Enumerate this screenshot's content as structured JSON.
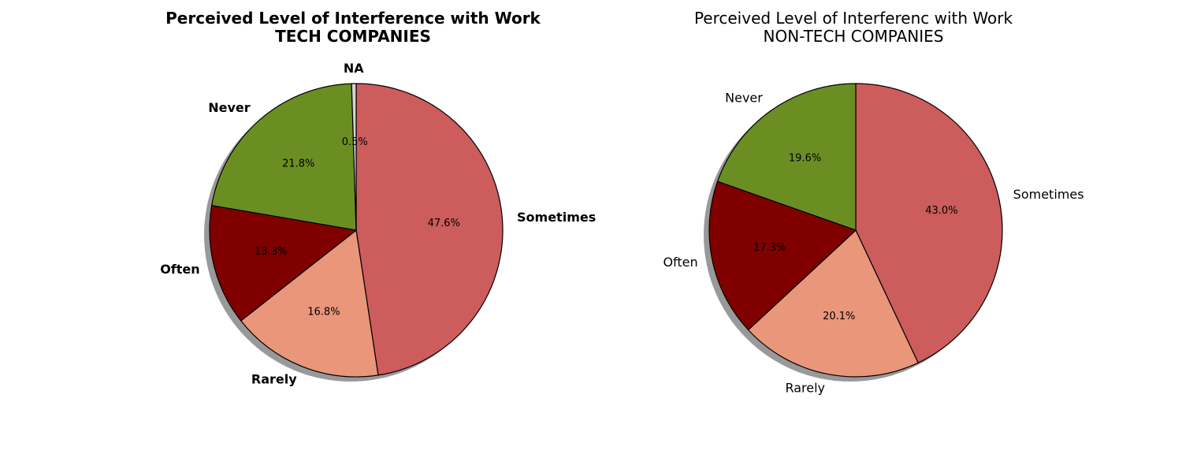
{
  "chart_data": [
    {
      "type": "pie",
      "title": "Perceived Level of Interference with Work",
      "subtitle": "TECH COMPANIES",
      "bold_labels": true,
      "slices": [
        {
          "label": "Sometimes",
          "value": 47.6,
          "pct_label": "47.6%",
          "color": "#cd5c5c"
        },
        {
          "label": "Rarely",
          "value": 16.8,
          "pct_label": "16.8%",
          "color": "#e9967a"
        },
        {
          "label": "Often",
          "value": 13.3,
          "pct_label": "13.3%",
          "color": "#800000"
        },
        {
          "label": "Never",
          "value": 21.8,
          "pct_label": "21.8%",
          "color": "#6b8e23"
        },
        {
          "label": "NA",
          "value": 0.5,
          "pct_label": "0.5%",
          "color": "#d3d3d3"
        }
      ],
      "start_angle_deg": 90,
      "direction": "clockwise",
      "shadow": true
    },
    {
      "type": "pie",
      "title": "Perceived Level of Interferenc with Work",
      "subtitle": "NON-TECH COMPANIES",
      "bold_labels": false,
      "slices": [
        {
          "label": "Sometimes",
          "value": 43.0,
          "pct_label": "43.0%",
          "color": "#cd5c5c"
        },
        {
          "label": "Rarely",
          "value": 20.1,
          "pct_label": "20.1%",
          "color": "#e9967a"
        },
        {
          "label": "Often",
          "value": 17.3,
          "pct_label": "17.3%",
          "color": "#800000"
        },
        {
          "label": "Never",
          "value": 19.6,
          "pct_label": "19.6%",
          "color": "#6b8e23"
        }
      ],
      "start_angle_deg": 90,
      "direction": "clockwise",
      "shadow": true
    }
  ]
}
